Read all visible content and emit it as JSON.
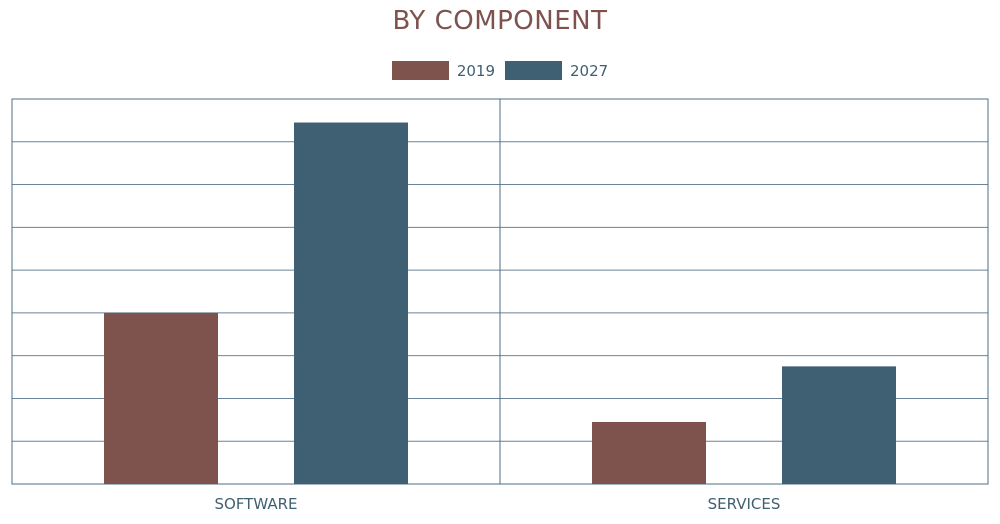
{
  "colors": {
    "series_2019": "#7e524d",
    "series_2027": "#3f5f72",
    "title": "#7e524d",
    "text": "#3f5f72",
    "grid": "#4f6f86"
  },
  "chart_data": {
    "type": "bar",
    "title": "BY COMPONENT",
    "categories": [
      "SOFTWARE",
      "SERVICES"
    ],
    "series": [
      {
        "name": "2019",
        "values": [
          4.0,
          1.45
        ]
      },
      {
        "name": "2027",
        "values": [
          8.45,
          2.75
        ]
      }
    ],
    "xlabel": "",
    "ylabel": "",
    "ylim": [
      0,
      9
    ],
    "gridlines": 9,
    "grid": true,
    "legend": "top-center"
  }
}
